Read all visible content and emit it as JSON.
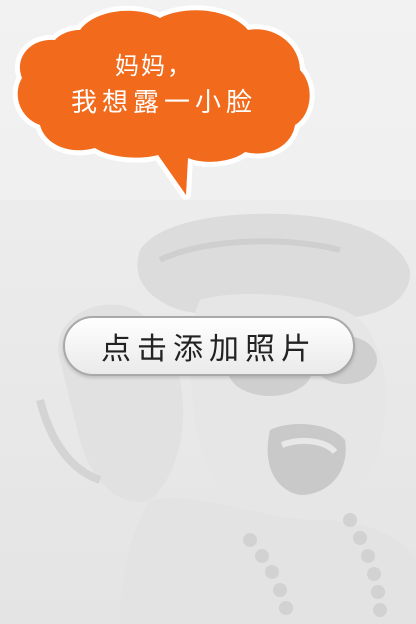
{
  "bubble": {
    "line1": "妈妈，",
    "line2": "我想露一小脸",
    "fill_color": "#f26a1b",
    "outline_color": "#ffffff"
  },
  "add_photo_button": {
    "label": "点击添加照片"
  },
  "background": {
    "color": "#eeeeee"
  }
}
